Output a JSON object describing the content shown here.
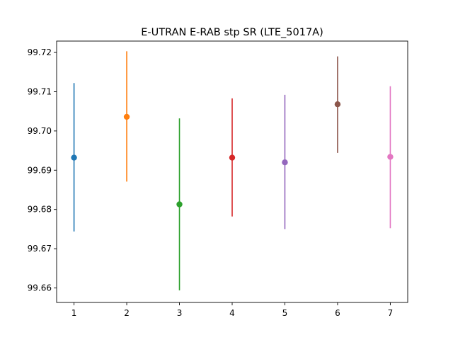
{
  "chart_data": {
    "type": "scatter",
    "title": "E-UTRAN E-RAB stp SR (LTE_5017A)",
    "xlabel": "",
    "ylabel": "",
    "x_ticks": [
      "1",
      "2",
      "3",
      "4",
      "5",
      "6",
      "7"
    ],
    "y_ticks": [
      "99.66",
      "99.67",
      "99.68",
      "99.69",
      "99.70",
      "99.71",
      "99.72"
    ],
    "xlim": [
      0.67,
      7.33
    ],
    "ylim": [
      99.6563,
      99.7229
    ],
    "grid": false,
    "legend": "none",
    "points": [
      {
        "x": 1,
        "y": 99.6932,
        "err_low": 99.6744,
        "err_high": 99.7122,
        "color": "#1f77b4"
      },
      {
        "x": 2,
        "y": 99.7036,
        "err_low": 99.6871,
        "err_high": 99.7203,
        "color": "#ff7f0e"
      },
      {
        "x": 3,
        "y": 99.6813,
        "err_low": 99.6594,
        "err_high": 99.7032,
        "color": "#2ca02c"
      },
      {
        "x": 4,
        "y": 99.6932,
        "err_low": 99.6782,
        "err_high": 99.7083,
        "color": "#d62728"
      },
      {
        "x": 5,
        "y": 99.692,
        "err_low": 99.675,
        "err_high": 99.7092,
        "color": "#9467bd"
      },
      {
        "x": 6,
        "y": 99.7068,
        "err_low": 99.6944,
        "err_high": 99.719,
        "color": "#8c564b"
      },
      {
        "x": 7,
        "y": 99.6934,
        "err_low": 99.6752,
        "err_high": 99.7114,
        "color": "#e377c2"
      }
    ]
  }
}
